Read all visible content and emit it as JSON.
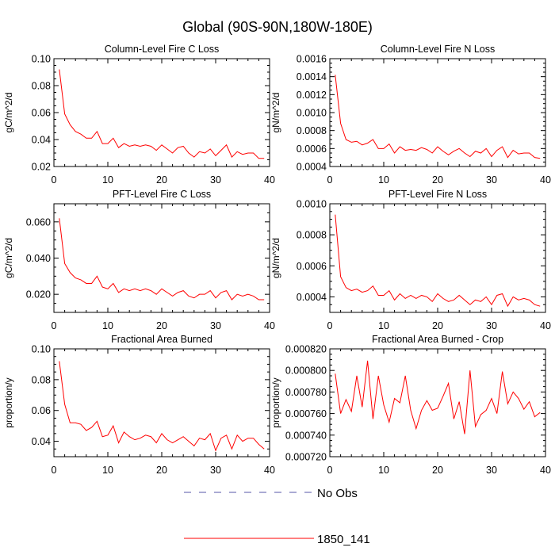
{
  "chart_data": {
    "type": "line",
    "title": "Global (90S-90N,180W-180E)",
    "legend": {
      "placement": "bottom-center",
      "entries": [
        {
          "name": "No Obs",
          "color": "#5555aa",
          "style": "dashed"
        },
        {
          "name": "1850_141",
          "color": "#ff0000",
          "style": "solid"
        }
      ]
    },
    "panels": [
      {
        "title": "Column-Level Fire C Loss",
        "ylabel": "gC/m^2/d",
        "xlim": [
          0,
          40
        ],
        "ylim": [
          0.02,
          0.1
        ],
        "xticks": [
          "0",
          "10",
          "20",
          "30",
          "40"
        ],
        "yticks": [
          "0.02",
          "0.04",
          "0.06",
          "0.08",
          "0.10"
        ],
        "yticks_values": [
          0.02,
          0.04,
          0.06,
          0.08,
          0.1
        ],
        "x": [
          1,
          2,
          3,
          4,
          5,
          6,
          7,
          8,
          9,
          10,
          11,
          12,
          13,
          14,
          15,
          16,
          17,
          18,
          19,
          20,
          21,
          22,
          23,
          24,
          25,
          26,
          27,
          28,
          29,
          30,
          31,
          32,
          33,
          34,
          35,
          36,
          37,
          38,
          39
        ],
        "series": [
          {
            "name": "1850_141",
            "values": [
              0.092,
              0.059,
              0.051,
              0.046,
              0.044,
              0.041,
              0.041,
              0.046,
              0.037,
              0.037,
              0.041,
              0.034,
              0.037,
              0.035,
              0.036,
              0.035,
              0.036,
              0.035,
              0.032,
              0.036,
              0.033,
              0.03,
              0.034,
              0.035,
              0.03,
              0.027,
              0.031,
              0.03,
              0.033,
              0.028,
              0.032,
              0.036,
              0.027,
              0.031,
              0.029,
              0.03,
              0.03,
              0.026,
              0.026
            ]
          }
        ]
      },
      {
        "title": "Column-Level Fire N Loss",
        "ylabel": "gN/m^2/d",
        "xlim": [
          0,
          40
        ],
        "ylim": [
          0.0004,
          0.0016
        ],
        "xticks": [
          "0",
          "10",
          "20",
          "30",
          "40"
        ],
        "yticks": [
          "0.0004",
          "0.0006",
          "0.0008",
          "0.0010",
          "0.0012",
          "0.0014",
          "0.0016"
        ],
        "yticks_values": [
          0.0004,
          0.0006,
          0.0008,
          0.001,
          0.0012,
          0.0014,
          0.0016
        ],
        "x": [
          1,
          2,
          3,
          4,
          5,
          6,
          7,
          8,
          9,
          10,
          11,
          12,
          13,
          14,
          15,
          16,
          17,
          18,
          19,
          20,
          21,
          22,
          23,
          24,
          25,
          26,
          27,
          28,
          29,
          30,
          31,
          32,
          33,
          34,
          35,
          36,
          37,
          38,
          39
        ],
        "series": [
          {
            "name": "1850_141",
            "values": [
              0.00142,
              0.00088,
              0.0007,
              0.00067,
              0.00068,
              0.00064,
              0.00066,
              0.0007,
              0.0006,
              0.0006,
              0.00065,
              0.00055,
              0.00062,
              0.00058,
              0.00059,
              0.00058,
              0.00061,
              0.00059,
              0.00055,
              0.00062,
              0.00057,
              0.00053,
              0.00057,
              0.0006,
              0.00055,
              0.00051,
              0.00057,
              0.00055,
              0.0006,
              0.00051,
              0.00058,
              0.00062,
              0.0005,
              0.00058,
              0.00054,
              0.00055,
              0.00055,
              0.0005,
              0.00049
            ]
          }
        ]
      },
      {
        "title": "PFT-Level Fire C Loss",
        "ylabel": "gC/m^2/d",
        "xlim": [
          0,
          40
        ],
        "ylim": [
          0.01,
          0.07
        ],
        "xticks": [
          "0",
          "10",
          "20",
          "30",
          "40"
        ],
        "yticks": [
          "0.020",
          "0.040",
          "0.060"
        ],
        "yticks_values": [
          0.02,
          0.04,
          0.06
        ],
        "x": [
          1,
          2,
          3,
          4,
          5,
          6,
          7,
          8,
          9,
          10,
          11,
          12,
          13,
          14,
          15,
          16,
          17,
          18,
          19,
          20,
          21,
          22,
          23,
          24,
          25,
          26,
          27,
          28,
          29,
          30,
          31,
          32,
          33,
          34,
          35,
          36,
          37,
          38,
          39
        ],
        "series": [
          {
            "name": "1850_141",
            "values": [
              0.062,
              0.037,
              0.032,
              0.029,
              0.028,
              0.026,
              0.026,
              0.03,
              0.024,
              0.023,
              0.026,
              0.021,
              0.023,
              0.022,
              0.023,
              0.022,
              0.023,
              0.022,
              0.02,
              0.023,
              0.021,
              0.019,
              0.021,
              0.022,
              0.019,
              0.018,
              0.02,
              0.02,
              0.022,
              0.018,
              0.021,
              0.022,
              0.017,
              0.02,
              0.019,
              0.02,
              0.019,
              0.017,
              0.017
            ]
          }
        ]
      },
      {
        "title": "PFT-Level Fire N Loss",
        "ylabel": "gN/m^2/d",
        "xlim": [
          0,
          40
        ],
        "ylim": [
          0.0003,
          0.001
        ],
        "xticks": [
          "0",
          "10",
          "20",
          "30",
          "40"
        ],
        "yticks": [
          "0.0004",
          "0.0006",
          "0.0008",
          "0.0010"
        ],
        "yticks_values": [
          0.0004,
          0.0006,
          0.0008,
          0.001
        ],
        "x": [
          1,
          2,
          3,
          4,
          5,
          6,
          7,
          8,
          9,
          10,
          11,
          12,
          13,
          14,
          15,
          16,
          17,
          18,
          19,
          20,
          21,
          22,
          23,
          24,
          25,
          26,
          27,
          28,
          29,
          30,
          31,
          32,
          33,
          34,
          35,
          36,
          37,
          38,
          39
        ],
        "series": [
          {
            "name": "1850_141",
            "values": [
              0.00093,
              0.00053,
              0.00046,
              0.00044,
              0.00045,
              0.00043,
              0.00044,
              0.00047,
              0.00041,
              0.00041,
              0.00044,
              0.00038,
              0.00042,
              0.00039,
              0.00041,
              0.00039,
              0.00041,
              0.0004,
              0.00037,
              0.00042,
              0.00039,
              0.00037,
              0.00038,
              0.00041,
              0.00038,
              0.00035,
              0.00038,
              0.00037,
              0.0004,
              0.00035,
              0.00041,
              0.00042,
              0.00034,
              0.0004,
              0.00038,
              0.00039,
              0.00038,
              0.00035,
              0.00034
            ]
          }
        ]
      },
      {
        "title": "Fractional Area Burned",
        "ylabel": "proportion/y",
        "xlim": [
          0,
          40
        ],
        "ylim": [
          0.03,
          0.1
        ],
        "xticks": [
          "0",
          "10",
          "20",
          "30",
          "40"
        ],
        "yticks": [
          "0.04",
          "0.06",
          "0.08",
          "0.10"
        ],
        "yticks_values": [
          0.04,
          0.06,
          0.08,
          0.1
        ],
        "x": [
          1,
          2,
          3,
          4,
          5,
          6,
          7,
          8,
          9,
          10,
          11,
          12,
          13,
          14,
          15,
          16,
          17,
          18,
          19,
          20,
          21,
          22,
          23,
          24,
          25,
          26,
          27,
          28,
          29,
          30,
          31,
          32,
          33,
          34,
          35,
          36,
          37,
          38,
          39
        ],
        "series": [
          {
            "name": "1850_141",
            "values": [
              0.092,
              0.064,
              0.052,
              0.052,
              0.051,
              0.047,
              0.049,
              0.053,
              0.043,
              0.044,
              0.05,
              0.039,
              0.046,
              0.043,
              0.041,
              0.042,
              0.044,
              0.043,
              0.039,
              0.045,
              0.041,
              0.039,
              0.041,
              0.043,
              0.04,
              0.037,
              0.042,
              0.041,
              0.045,
              0.034,
              0.042,
              0.044,
              0.035,
              0.044,
              0.04,
              0.042,
              0.042,
              0.038,
              0.035
            ]
          }
        ]
      },
      {
        "title": "Fractional Area Burned - Crop",
        "ylabel": "proportion/y",
        "xlim": [
          0,
          40
        ],
        "ylim": [
          0.00072,
          0.00082
        ],
        "xticks": [
          "0",
          "10",
          "20",
          "30",
          "40"
        ],
        "yticks": [
          "0.000720",
          "0.000740",
          "0.000760",
          "0.000780",
          "0.000800",
          "0.000820"
        ],
        "yticks_values": [
          0.00072,
          0.00074,
          0.00076,
          0.00078,
          0.0008,
          0.00082
        ],
        "x": [
          1,
          2,
          3,
          4,
          5,
          6,
          7,
          8,
          9,
          10,
          11,
          12,
          13,
          14,
          15,
          16,
          17,
          18,
          19,
          20,
          21,
          22,
          23,
          24,
          25,
          26,
          27,
          28,
          29,
          30,
          31,
          32,
          33,
          34,
          35,
          36,
          37,
          38,
          39
        ],
        "series": [
          {
            "name": "1850_141",
            "values": [
              0.000797,
              0.00076,
              0.000773,
              0.000762,
              0.000795,
              0.000766,
              0.000809,
              0.000755,
              0.000795,
              0.000768,
              0.000752,
              0.000774,
              0.00077,
              0.000795,
              0.000763,
              0.000746,
              0.000763,
              0.000772,
              0.000763,
              0.000765,
              0.000776,
              0.000788,
              0.000755,
              0.000771,
              0.000741,
              0.0008,
              0.000748,
              0.000759,
              0.000763,
              0.000774,
              0.00076,
              0.000799,
              0.000769,
              0.00078,
              0.000774,
              0.000764,
              0.000771,
              0.000757,
              0.000761
            ]
          }
        ]
      }
    ]
  }
}
